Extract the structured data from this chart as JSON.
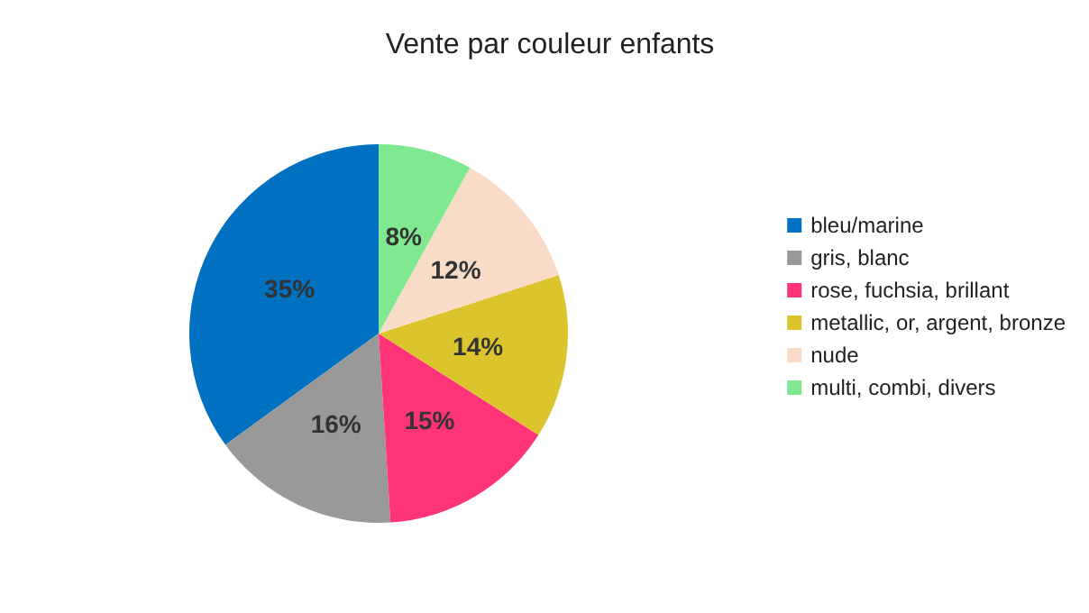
{
  "chart_data": {
    "type": "pie",
    "title": "Vente par couleur enfants",
    "categories": [
      "bleu/marine",
      "gris, blanc",
      "rose, fuchsia, brillant",
      "metallic, or, argent, bronze",
      "nude",
      "multi, combi, divers"
    ],
    "values": [
      35,
      16,
      15,
      14,
      12,
      8
    ],
    "value_labels": [
      "35%",
      "16%",
      "15%",
      "14%",
      "12%",
      "8%"
    ],
    "colors": [
      "#0070c0",
      "#999999",
      "#ff3377",
      "#dcc52c",
      "#f8dcc8",
      "#80e890"
    ],
    "legend": "right"
  }
}
